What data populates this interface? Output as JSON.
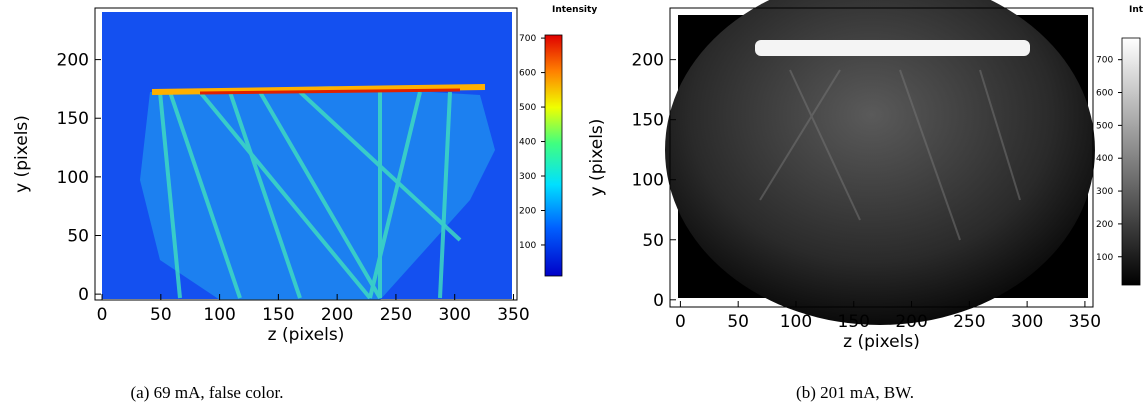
{
  "panels": [
    {
      "xlabel": "z (pixels)",
      "ylabel": "y (pixels)",
      "xlim": [
        -6,
        353
      ],
      "xticks": [
        0,
        50,
        100,
        150,
        200,
        250,
        300,
        350
      ],
      "ylim": [
        -5,
        244
      ],
      "yticks": [
        0,
        50,
        100,
        150,
        200
      ],
      "colorbar": {
        "title": "Intensity",
        "lim": [
          10,
          709
        ],
        "ticks": [
          100,
          200,
          300,
          400,
          500,
          600,
          700
        ]
      },
      "caption": "(a) 69 mA, false color."
    },
    {
      "xlabel": "z (pixels)",
      "ylabel": "y (pixels)",
      "xlim": [
        -9,
        357
      ],
      "xticks": [
        0,
        50,
        100,
        150,
        200,
        250,
        300,
        350
      ],
      "ylim": [
        -6,
        243
      ],
      "yticks": [
        0,
        50,
        100,
        150,
        200
      ],
      "colorbar": {
        "title": "Intensity",
        "lim": [
          14,
          766
        ],
        "ticks": [
          100,
          200,
          300,
          400,
          500,
          600,
          700
        ]
      },
      "caption": "(b) 201 mA, BW."
    }
  ]
}
